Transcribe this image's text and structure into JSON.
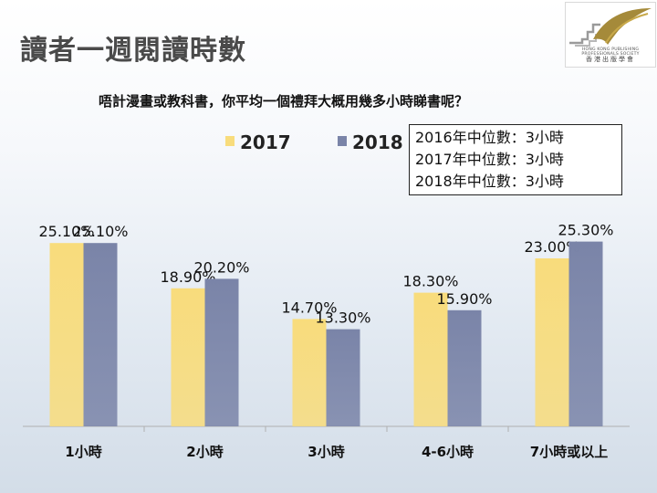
{
  "slide": {
    "title": "讀者一週閱讀時數",
    "question": "唔計漫畫或教科書，你平均一個禮拜大概用幾多小時睇書呢？"
  },
  "logo": {
    "caption_en": "HONG KONG PUBLISHING PROFESSIONALS SOCIETY",
    "caption_zh": "香港出版學會"
  },
  "median_box": {
    "lines": [
      "2016年中位數：3小時",
      "2017年中位數：3小時",
      "2018年中位數：3小時"
    ]
  },
  "colors": {
    "series_2017": "#f8dc7c",
    "series_2018": "#7a84a8",
    "title": "#4a4a4a",
    "axis": "#b0b0b0"
  },
  "chart_data": {
    "type": "bar",
    "categories": [
      "1小時",
      "2小時",
      "3小時",
      "4-6小時",
      "7小時或以上"
    ],
    "series": [
      {
        "name": "2017",
        "values": [
          25.1,
          18.9,
          14.7,
          18.3,
          23.0
        ],
        "labels": [
          "25.10%",
          "18.90%",
          "14.70%",
          "18.30%",
          "23.00%"
        ]
      },
      {
        "name": "2018",
        "values": [
          25.1,
          20.2,
          13.3,
          15.9,
          25.3
        ],
        "labels": [
          "25.10%",
          "20.20%",
          "13.30%",
          "15.90%",
          "25.30%"
        ]
      }
    ],
    "unit": "%",
    "ylim": [
      0,
      30
    ],
    "legend_position": "top-left",
    "grid": false
  }
}
